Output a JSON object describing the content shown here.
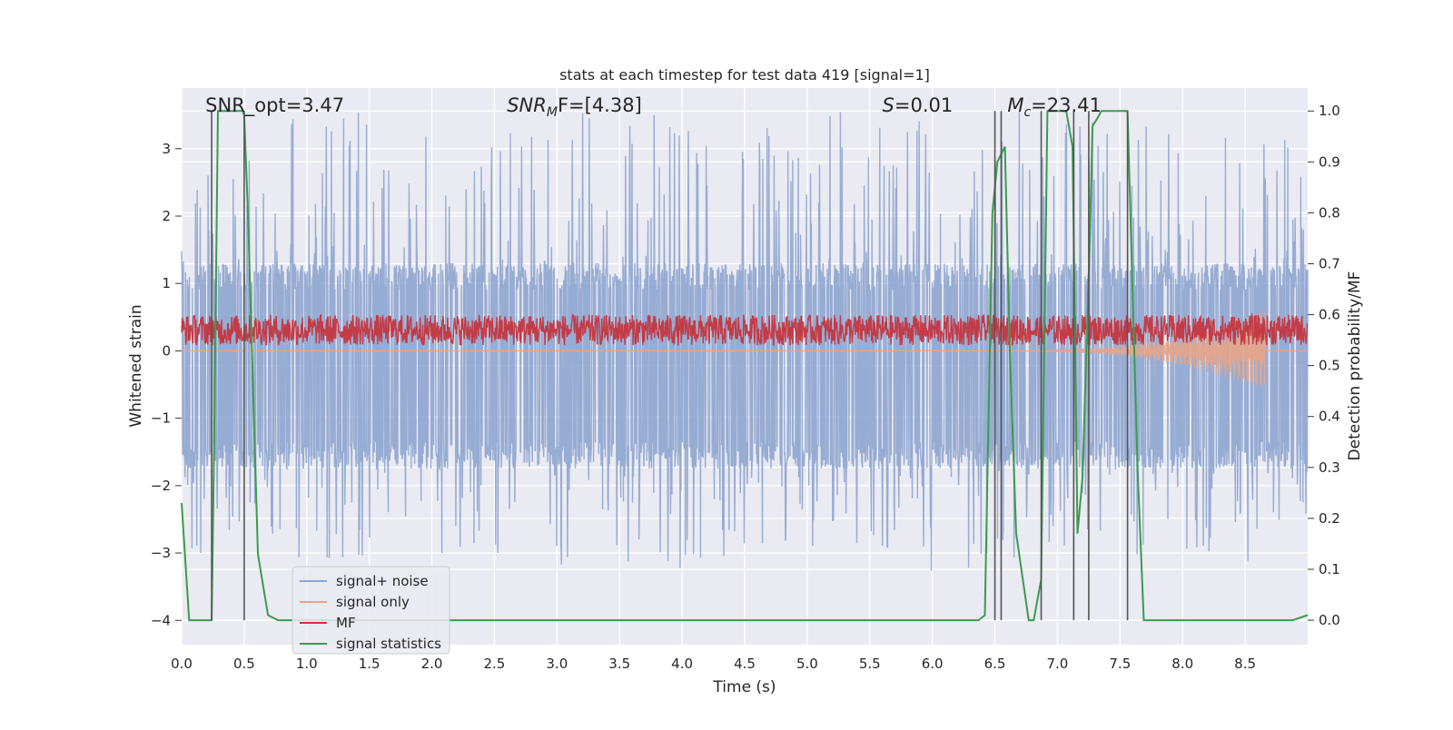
{
  "chart_data": {
    "type": "line",
    "title": "stats at each timestep for test data 419 [signal=1]",
    "xlabel": "Time (s)",
    "ylabel_left": "Whitened strain",
    "ylabel_right": "Detection probability/MF",
    "xlim": [
      0,
      9.0
    ],
    "ylim_left": [
      -4.36,
      3.9
    ],
    "ylim_right": [
      -0.048,
      1.045
    ],
    "x_ticks": [
      "0.0",
      "0.5",
      "1.0",
      "1.5",
      "2.0",
      "2.5",
      "3.0",
      "3.5",
      "4.0",
      "4.5",
      "5.0",
      "5.5",
      "6.0",
      "6.5",
      "7.0",
      "7.5",
      "8.0",
      "8.5"
    ],
    "x_tick_values": [
      0,
      0.5,
      1,
      1.5,
      2,
      2.5,
      3,
      3.5,
      4,
      4.5,
      5,
      5.5,
      6,
      6.5,
      7,
      7.5,
      8,
      8.5
    ],
    "y_left_ticks": [
      "−4",
      "−3",
      "−2",
      "−1",
      "0",
      "1",
      "2",
      "3"
    ],
    "y_left_tick_values": [
      -4,
      -3,
      -2,
      -1,
      0,
      1,
      2,
      3
    ],
    "y_right_ticks": [
      "0.0",
      "0.1",
      "0.2",
      "0.3",
      "0.4",
      "0.5",
      "0.6",
      "0.7",
      "0.8",
      "0.9",
      "1.0"
    ],
    "y_right_tick_values": [
      0,
      0.1,
      0.2,
      0.3,
      0.4,
      0.5,
      0.6,
      0.7,
      0.8,
      0.9,
      1.0
    ],
    "grid": true,
    "legend_position": "lower-left",
    "annotations": [
      {
        "prefix": "SNR_opt=3.47",
        "italic": "",
        "sub": "",
        "suffix": "",
        "x": 0.19
      },
      {
        "prefix": "",
        "italic": "SNR",
        "sub": "M",
        "suffix": "F=[4.38]",
        "x": 2.6
      },
      {
        "prefix": "",
        "italic": "S",
        "sub": "",
        "suffix": "=0.01",
        "x": 5.6
      },
      {
        "prefix": "",
        "italic": "M",
        "sub": "c",
        "suffix": "=23.41",
        "x": 6.6
      }
    ],
    "vertical_lines_x": [
      0.24,
      0.5,
      6.5,
      6.55,
      6.87,
      7.13,
      7.25,
      7.56
    ],
    "series": [
      {
        "name": "signal+ noise",
        "color": "#8ea5cf",
        "axis": "left",
        "envelope_top": 1.3,
        "envelope_bottom": -1.75,
        "peak_top": 3.6,
        "peak_bottom": -3.3
      },
      {
        "name": "signal only",
        "color": "#e8a487",
        "axis": "left",
        "ringdown_start": 6.3,
        "ringdown_end": 8.66,
        "ringdown_peak": 0.6
      },
      {
        "name": "MF",
        "color": "#c4353e",
        "axis": "right",
        "baseline": 0.57,
        "amplitude": 0.03
      },
      {
        "name": "signal statistics",
        "color": "#3b9b4d",
        "axis": "right",
        "x": [
          0.0,
          0.06,
          0.24,
          0.26,
          0.29,
          0.31,
          0.49,
          0.5,
          0.53,
          0.61,
          0.69,
          0.77,
          0.85,
          6.37,
          6.42,
          6.48,
          6.52,
          6.58,
          6.62,
          6.67,
          6.77,
          6.81,
          6.87,
          6.92,
          6.98,
          7.07,
          7.12,
          7.13,
          7.16,
          7.2,
          7.26,
          7.28,
          7.33,
          7.35,
          7.56,
          7.64,
          7.69,
          8.88,
          9.0
        ],
        "y": [
          0.23,
          0.0,
          0.0,
          0.35,
          1.0,
          1.0,
          1.0,
          0.99,
          0.8,
          0.13,
          0.01,
          0.0,
          0.0,
          0.0,
          0.01,
          0.8,
          0.9,
          0.93,
          0.52,
          0.17,
          0.0,
          0.0,
          0.08,
          1.0,
          1.0,
          1.0,
          0.93,
          0.75,
          0.17,
          0.28,
          0.76,
          0.97,
          0.99,
          1.0,
          1.0,
          0.3,
          0.0,
          0.0,
          0.01
        ]
      }
    ]
  }
}
